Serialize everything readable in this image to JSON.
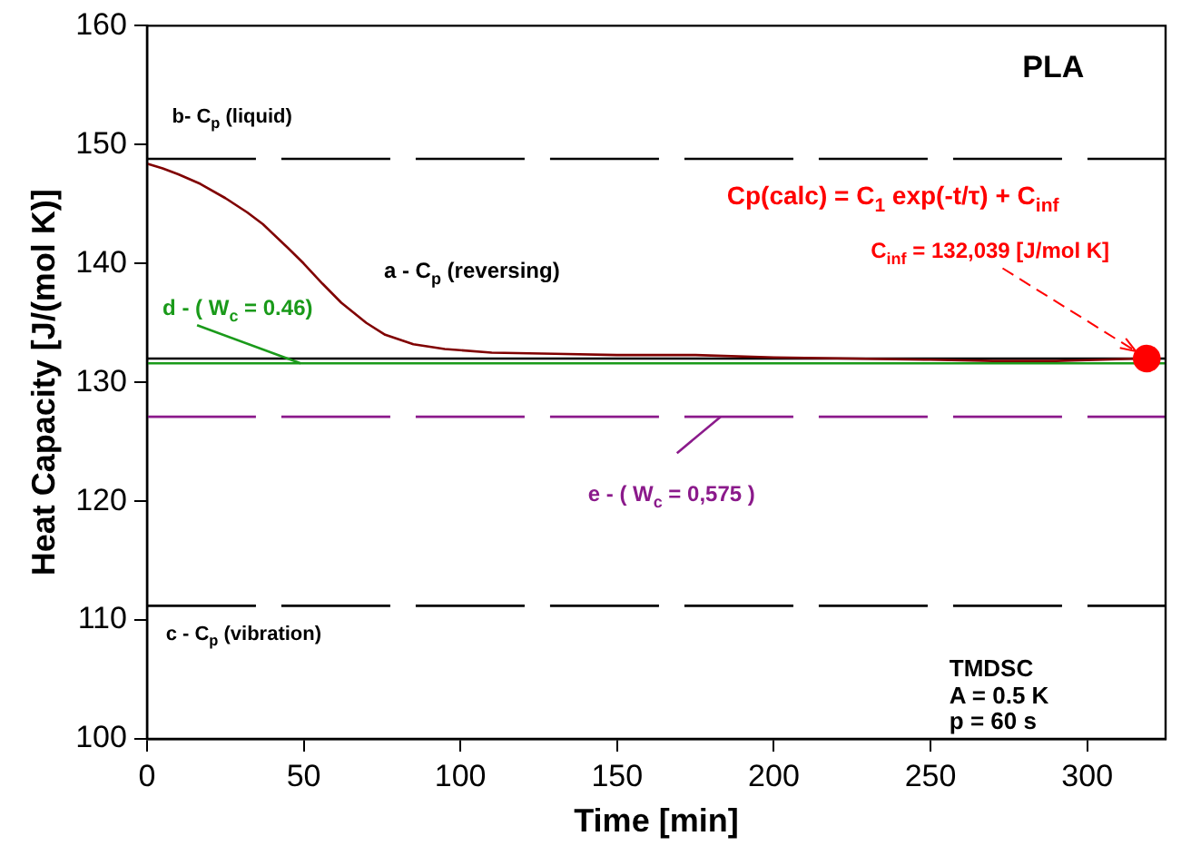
{
  "chart_data": {
    "type": "line",
    "xlabel": "Time [min]",
    "ylabel": "Heat Capacity [J/(mol K)]",
    "xlim": [
      0,
      325
    ],
    "xticks": [
      0,
      50,
      100,
      150,
      200,
      250,
      300
    ],
    "ylim": [
      100,
      160
    ],
    "yticks": [
      100,
      110,
      120,
      130,
      140,
      150,
      160
    ],
    "grid": false,
    "legend": false,
    "series": [
      {
        "color": "#800000",
        "marker": "none",
        "x": [
          0,
          5,
          10,
          17,
          25,
          32,
          37,
          45,
          50,
          56,
          62,
          70,
          76,
          85,
          95,
          110,
          130,
          150,
          175,
          200,
          225,
          250,
          270,
          290,
          305,
          316
        ],
        "values": [
          148.4,
          148.0,
          147.5,
          146.7,
          145.5,
          144.3,
          143.3,
          141.3,
          140.0,
          138.3,
          136.7,
          135.0,
          134.0,
          133.2,
          132.8,
          132.5,
          132.4,
          132.3,
          132.3,
          132.1,
          132.0,
          131.9,
          131.8,
          131.8,
          131.9,
          132.0
        ]
      },
      {
        "type": "scatter",
        "color": "#ff0000",
        "marker": "circle",
        "x": [
          319
        ],
        "values": [
          132.0
        ]
      }
    ],
    "ref_lines": [
      {
        "axis": "y",
        "value": 148.8,
        "color": "#000000",
        "line_style": "dashed"
      },
      {
        "axis": "y",
        "value": 111.2,
        "color": "#000000",
        "line_style": "dashed"
      },
      {
        "axis": "y",
        "value": 132.0,
        "color": "#000000",
        "line_style": "solid"
      },
      {
        "axis": "y",
        "value": 131.6,
        "color": "#1a9a1a",
        "line_style": "solid"
      },
      {
        "axis": "y",
        "value": 127.1,
        "color": "#8b1a8b",
        "line_style": "dashed"
      }
    ],
    "annotations": [
      "PLA",
      "Cp(calc) = C$_{1}$ exp(-t/τ) + C$_{inf}$",
      {
        "text": "C$_{inf}$ = 132,039 [J/mol K]",
        "x": 319,
        "y": 132.0
      },
      "TMDSC",
      "A = 0.5 K",
      "p = 60 s",
      "a - C$_{p}$ (reversing)",
      "b- C$_{p}$ (liquid)",
      "c - C$_{p}$ (vibration)",
      {
        "text": "d - ( W$_{c}$ = 0.46)",
        "x": 49,
        "y": 131.6
      },
      {
        "text": "e - ( W$_{c}$ = 0,575 )",
        "x": 183,
        "y": 127.1
      }
    ]
  }
}
